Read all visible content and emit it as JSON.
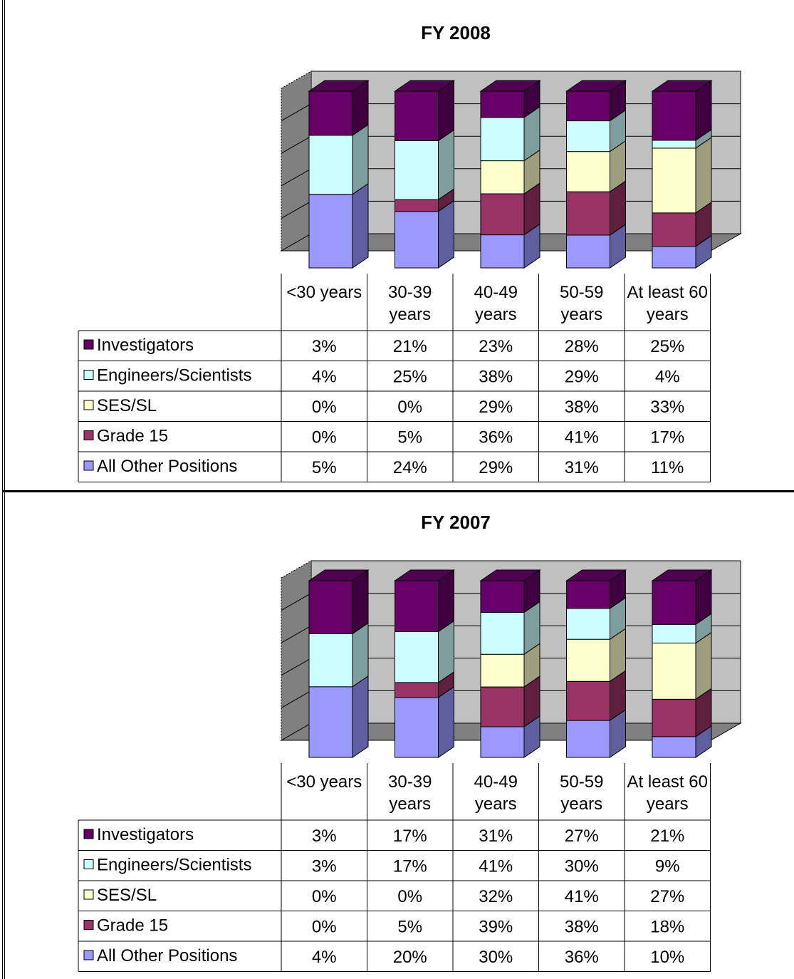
{
  "chart_data": [
    {
      "type": "bar",
      "stacked": true,
      "three_d": true,
      "title": "FY 2008",
      "categories": [
        "<30 years",
        "30-39 years",
        "40-49 years",
        "50-59 years",
        "At least 60 years"
      ],
      "series": [
        {
          "name": "Investigators",
          "color": "#660066",
          "values": [
            "3%",
            "21%",
            "23%",
            "28%",
            "25%"
          ]
        },
        {
          "name": "Engineers/Scientists",
          "color": "#CCFFFF",
          "values": [
            "4%",
            "25%",
            "38%",
            "29%",
            "4%"
          ]
        },
        {
          "name": "SES/SL",
          "color": "#FFFFCC",
          "values": [
            "0%",
            "0%",
            "29%",
            "38%",
            "33%"
          ]
        },
        {
          "name": "Grade 15",
          "color": "#993366",
          "values": [
            "0%",
            "5%",
            "36%",
            "41%",
            "17%"
          ]
        },
        {
          "name": "All Other Positions",
          "color": "#9999FF",
          "values": [
            "5%",
            "24%",
            "29%",
            "31%",
            "11%"
          ]
        }
      ],
      "ylim": [
        0,
        1
      ],
      "grid": true,
      "legend": "data-table"
    },
    {
      "type": "bar",
      "stacked": true,
      "three_d": true,
      "title": "FY 2007",
      "categories": [
        "<30 years",
        "30-39 years",
        "40-49 years",
        "50-59 years",
        "At least 60 years"
      ],
      "series": [
        {
          "name": "Investigators",
          "color": "#660066",
          "values": [
            "3%",
            "17%",
            "31%",
            "27%",
            "21%"
          ]
        },
        {
          "name": "Engineers/Scientists",
          "color": "#CCFFFF",
          "values": [
            "3%",
            "17%",
            "41%",
            "30%",
            "9%"
          ]
        },
        {
          "name": "SES/SL",
          "color": "#FFFFCC",
          "values": [
            "0%",
            "0%",
            "32%",
            "41%",
            "27%"
          ]
        },
        {
          "name": "Grade 15",
          "color": "#993366",
          "values": [
            "0%",
            "5%",
            "39%",
            "38%",
            "18%"
          ]
        },
        {
          "name": "All Other Positions",
          "color": "#9999FF",
          "values": [
            "4%",
            "20%",
            "30%",
            "36%",
            "10%"
          ]
        }
      ],
      "ylim": [
        0,
        1
      ],
      "grid": true,
      "legend": "data-table"
    }
  ]
}
